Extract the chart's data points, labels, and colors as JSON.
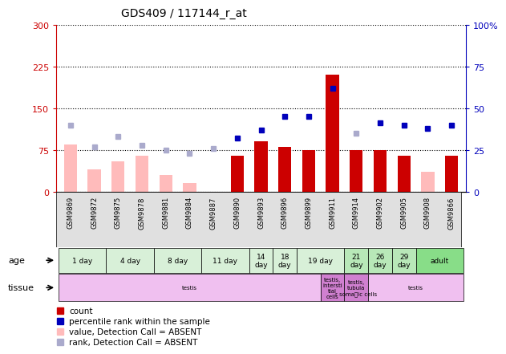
{
  "title": "GDS409 / 117144_r_at",
  "samples": [
    "GSM9869",
    "GSM9872",
    "GSM9875",
    "GSM9878",
    "GSM9881",
    "GSM9884",
    "GSM9887",
    "GSM9890",
    "GSM9893",
    "GSM9896",
    "GSM9899",
    "GSM9911",
    "GSM9914",
    "GSM9902",
    "GSM9905",
    "GSM9908",
    "GSM9866"
  ],
  "count_values": [
    null,
    null,
    null,
    null,
    null,
    null,
    null,
    65,
    90,
    80,
    75,
    210,
    75,
    75,
    65,
    null,
    65
  ],
  "count_absent": [
    85,
    40,
    55,
    65,
    30,
    15,
    null,
    null,
    null,
    null,
    null,
    null,
    70,
    null,
    null,
    35,
    null
  ],
  "percentile_values": [
    null,
    null,
    null,
    null,
    null,
    null,
    null,
    32,
    37,
    45,
    45,
    62,
    null,
    41,
    40,
    38,
    40
  ],
  "percentile_absent": [
    40,
    27,
    33,
    28,
    25,
    23,
    26,
    null,
    null,
    null,
    null,
    null,
    35,
    null,
    null,
    null,
    null
  ],
  "ylim_left": [
    0,
    300
  ],
  "ylim_right": [
    0,
    100
  ],
  "yticks_left": [
    0,
    75,
    150,
    225,
    300
  ],
  "yticks_right": [
    0,
    25,
    50,
    75,
    100
  ],
  "age_groups": [
    {
      "label": "1 day",
      "start": 0,
      "end": 2,
      "color": "#d8f0d8"
    },
    {
      "label": "4 day",
      "start": 2,
      "end": 4,
      "color": "#d8f0d8"
    },
    {
      "label": "8 day",
      "start": 4,
      "end": 6,
      "color": "#d8f0d8"
    },
    {
      "label": "11 day",
      "start": 6,
      "end": 8,
      "color": "#d8f0d8"
    },
    {
      "label": "14\nday",
      "start": 8,
      "end": 9,
      "color": "#d8f0d8"
    },
    {
      "label": "18\nday",
      "start": 9,
      "end": 10,
      "color": "#d8f0d8"
    },
    {
      "label": "19 day",
      "start": 10,
      "end": 12,
      "color": "#d8f0d8"
    },
    {
      "label": "21\nday",
      "start": 12,
      "end": 13,
      "color": "#b8e8b8"
    },
    {
      "label": "26\nday",
      "start": 13,
      "end": 14,
      "color": "#b8e8b8"
    },
    {
      "label": "29\nday",
      "start": 14,
      "end": 15,
      "color": "#b8e8b8"
    },
    {
      "label": "adult",
      "start": 15,
      "end": 17,
      "color": "#88dd88"
    }
  ],
  "tissue_groups": [
    {
      "label": "testis",
      "start": 0,
      "end": 11,
      "color": "#f0c0f0"
    },
    {
      "label": "testis,\nintersti\ntial\ncells",
      "start": 11,
      "end": 12,
      "color": "#d080d0"
    },
    {
      "label": "testis,\ntubula\nr soma\tic cells",
      "start": 12,
      "end": 13,
      "color": "#d080d0"
    },
    {
      "label": "testis",
      "start": 13,
      "end": 17,
      "color": "#f0c0f0"
    }
  ],
  "bar_color_red": "#cc0000",
  "bar_color_pink": "#ffbbbb",
  "dot_color_blue": "#0000bb",
  "dot_color_lightblue": "#aaaacc",
  "left_axis_color": "#cc0000",
  "right_axis_color": "#0000bb"
}
